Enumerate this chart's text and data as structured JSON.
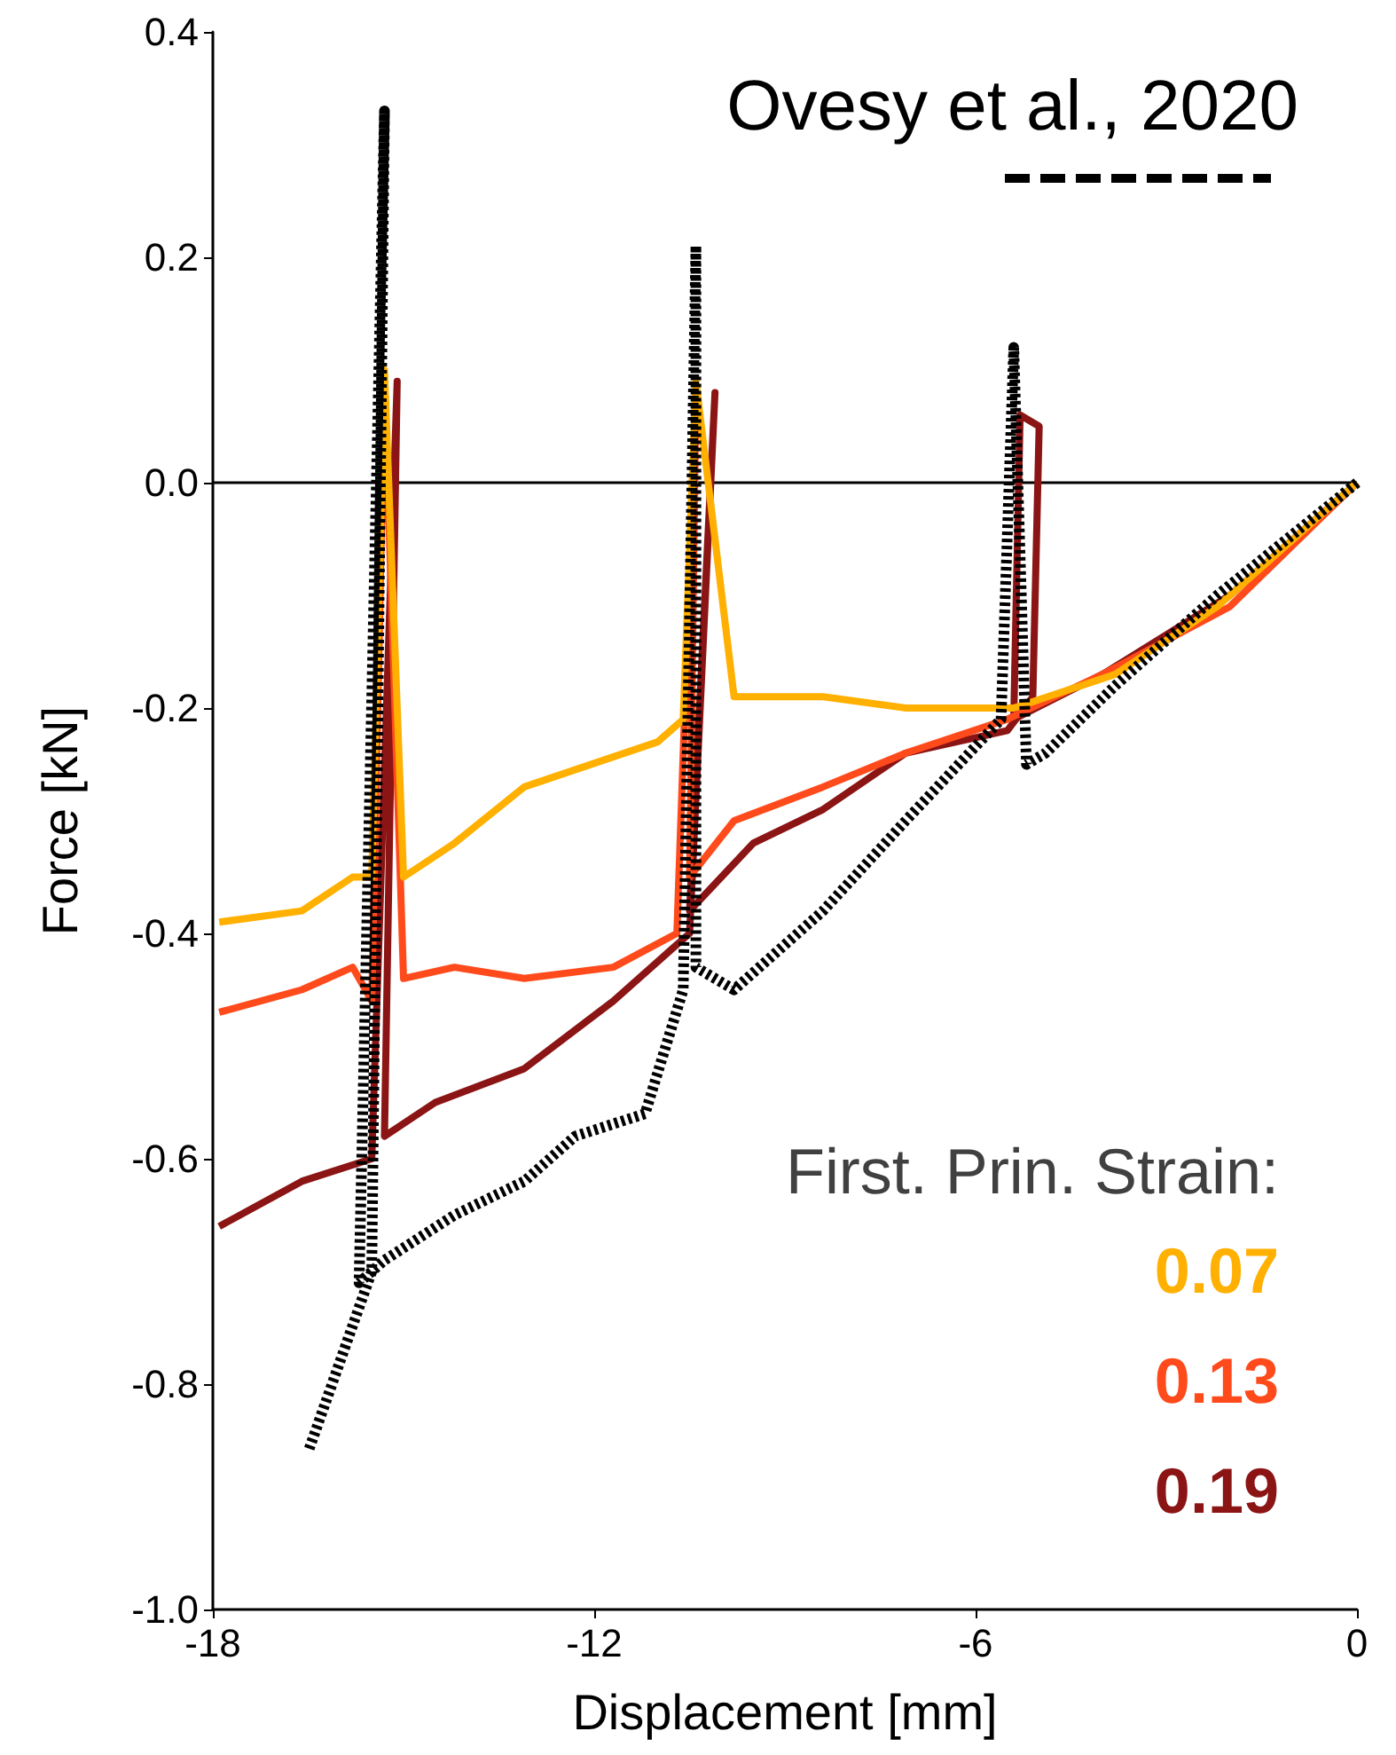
{
  "chart_data": {
    "type": "line",
    "xlabel": "Displacement [mm]",
    "ylabel": "Force [kN]",
    "legend_title": "First. Prin. Strain:",
    "legend": "right",
    "xlim": [
      -18,
      0
    ],
    "xticks": [
      -18,
      -12,
      -6,
      0
    ],
    "ylim": [
      -1.0,
      0.4
    ],
    "yticks": [
      {
        "value": -1.0,
        "label": "-1.0"
      },
      {
        "value": -0.8,
        "label": "-0.8"
      },
      {
        "value": -0.6,
        "label": "-0.6"
      },
      {
        "value": -0.4,
        "label": "-0.4"
      },
      {
        "value": -0.2,
        "label": "-0.2"
      },
      {
        "value": 0,
        "label": "0.0"
      },
      {
        "value": 0.2,
        "label": "0.2"
      },
      {
        "value": 0.4,
        "label": "0.4"
      }
    ],
    "grid": false,
    "marker": "none",
    "ref_lines": [
      {
        "axis": "y",
        "value": 0,
        "color": "#000000"
      }
    ],
    "series": [
      {
        "name": "Ovesy et al., 2020",
        "color": "#000000",
        "line_style": "dotted",
        "x": [
          0,
          -2.2,
          -3.8,
          -4.9,
          -5.2,
          -5.4,
          -5.6,
          -7.1,
          -8.4,
          -9.8,
          -10.4,
          -10.4,
          -10.6,
          -11.2,
          -12.3,
          -13.1,
          -14.2,
          -15.3,
          -15.7,
          -15.3,
          -15.5,
          -16.5
        ],
        "values": [
          0,
          -0.1,
          -0.18,
          -0.24,
          -0.25,
          0.12,
          -0.21,
          -0.3,
          -0.38,
          -0.45,
          -0.43,
          0.21,
          -0.45,
          -0.56,
          -0.58,
          -0.62,
          -0.65,
          -0.69,
          -0.71,
          0.33,
          -0.7,
          -0.86
        ]
      },
      {
        "name": "0.07",
        "color": "#ffb000",
        "line_style": "solid",
        "x": [
          0,
          -2.2,
          -3.8,
          -5.4,
          -7.1,
          -8.4,
          -9.8,
          -10.4,
          -10.6,
          -11.0,
          -13.1,
          -14.2,
          -15.0,
          -15.3,
          -15.5,
          -15.8,
          -16.6,
          -17.9
        ],
        "values": [
          0,
          -0.11,
          -0.17,
          -0.2,
          -0.2,
          -0.19,
          -0.19,
          0.09,
          -0.21,
          -0.23,
          -0.27,
          -0.32,
          -0.35,
          0.1,
          -0.35,
          -0.35,
          -0.38,
          -0.39
        ]
      },
      {
        "name": "0.13",
        "color": "#ff4a1c",
        "line_style": "solid",
        "x": [
          0,
          -2.0,
          -4.0,
          -5.5,
          -7.1,
          -8.4,
          -9.8,
          -10.5,
          -10.4,
          -10.7,
          -11.7,
          -13.1,
          -14.2,
          -15.0,
          -15.3,
          -15.5,
          -15.8,
          -16.6,
          -17.9
        ],
        "values": [
          0,
          -0.11,
          -0.17,
          -0.21,
          -0.24,
          -0.27,
          -0.3,
          -0.35,
          0.08,
          -0.4,
          -0.43,
          -0.44,
          -0.43,
          -0.44,
          0.09,
          -0.46,
          -0.43,
          -0.45,
          -0.47
        ]
      },
      {
        "name": "0.19",
        "color": "#8b1414",
        "line_style": "solid",
        "x": [
          0,
          -2.0,
          -4.0,
          -5.4,
          -5.3,
          -5.0,
          -5.1,
          -5.5,
          -7.1,
          -8.4,
          -9.5,
          -10.5,
          -10.1,
          -10.5,
          -11.7,
          -13.1,
          -14.5,
          -15.3,
          -15.1,
          -15.5,
          -16.6,
          -17.9
        ],
        "values": [
          0,
          -0.1,
          -0.17,
          -0.21,
          0.06,
          0.05,
          -0.19,
          -0.22,
          -0.24,
          -0.29,
          -0.32,
          -0.38,
          0.08,
          -0.4,
          -0.46,
          -0.52,
          -0.55,
          -0.58,
          0.09,
          -0.6,
          -0.62,
          -0.66
        ]
      }
    ]
  }
}
